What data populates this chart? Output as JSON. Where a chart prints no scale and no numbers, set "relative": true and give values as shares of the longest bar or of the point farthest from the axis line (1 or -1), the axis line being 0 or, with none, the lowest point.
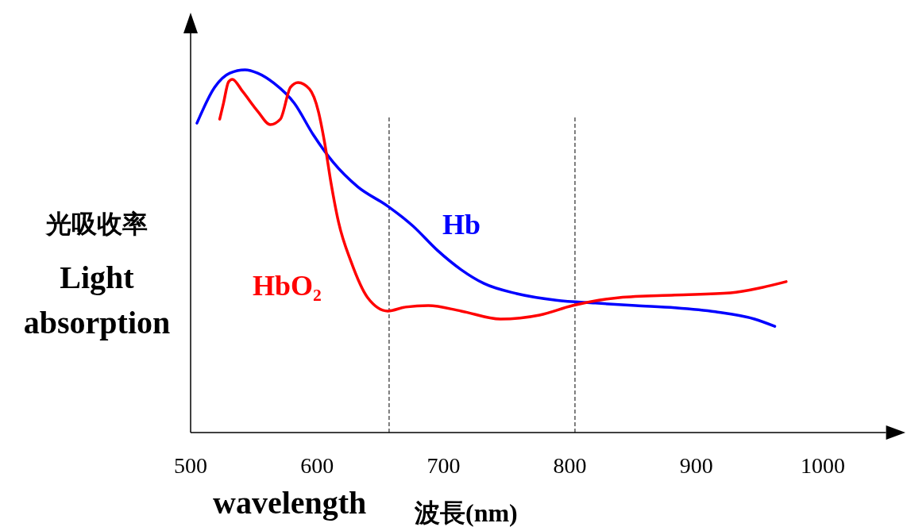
{
  "chart_data": {
    "type": "line",
    "relative": true,
    "ylabel": "光吸收率\nLight\nabsorption",
    "xlabel": "wavelength 波長(nm)",
    "xlim": [
      500,
      1050
    ],
    "xticks": [
      500,
      600,
      700,
      800,
      900,
      1000
    ],
    "grid": false,
    "legend": false,
    "marker": "none",
    "line_style": "solid",
    "tick_labels": "x",
    "ref_lines": [
      {
        "axis": "x",
        "value": 657,
        "color": "#000000",
        "line_style": "dashed"
      },
      {
        "axis": "x",
        "value": 804,
        "color": "#000000",
        "line_style": "dashed"
      }
    ],
    "series": [
      {
        "name": "Hb",
        "color": "#0000ff",
        "x": [
          505,
          519,
          531,
          543,
          553,
          566,
          582,
          597,
          613,
          632,
          656,
          676,
          695,
          714,
          732,
          758,
          789,
          820,
          852,
          883,
          915,
          946,
          962
        ],
        "values": [
          0.853,
          0.952,
          0.991,
          1.0,
          0.991,
          0.963,
          0.908,
          0.821,
          0.744,
          0.678,
          0.624,
          0.569,
          0.503,
          0.449,
          0.411,
          0.383,
          0.365,
          0.357,
          0.35,
          0.344,
          0.333,
          0.313,
          0.293
        ]
      },
      {
        "name": "HbO₂",
        "color": "#ff0000",
        "x": [
          523,
          526,
          530,
          533,
          541,
          553,
          563,
          571,
          579,
          585,
          594,
          601,
          606,
          611,
          617,
          627,
          640,
          656,
          670,
          688,
          714,
          745,
          776,
          802,
          839,
          883,
          927,
          952,
          971
        ],
        "values": [
          0.864,
          0.908,
          0.967,
          0.974,
          0.941,
          0.886,
          0.849,
          0.864,
          0.952,
          0.965,
          0.947,
          0.886,
          0.799,
          0.689,
          0.58,
          0.47,
          0.372,
          0.335,
          0.346,
          0.35,
          0.335,
          0.313,
          0.324,
          0.35,
          0.372,
          0.379,
          0.385,
          0.4,
          0.416
        ]
      }
    ]
  }
}
